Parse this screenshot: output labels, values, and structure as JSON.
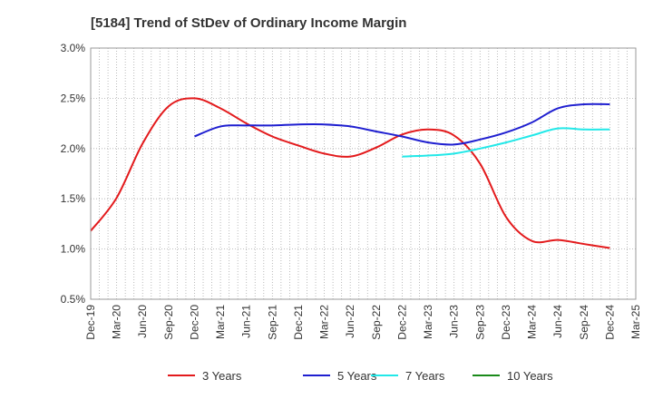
{
  "chart_data": {
    "type": "line",
    "title": "[5184]  Trend of StDev of Ordinary Income Margin",
    "xlabel": "",
    "ylabel": "",
    "x_tick_labels": [
      "Dec-19",
      "Mar-20",
      "Jun-20",
      "Sep-20",
      "Dec-20",
      "Mar-21",
      "Jun-21",
      "Sep-21",
      "Dec-21",
      "Mar-22",
      "Jun-22",
      "Sep-22",
      "Dec-22",
      "Mar-23",
      "Jun-23",
      "Sep-23",
      "Dec-23",
      "Mar-24",
      "Jun-24",
      "Sep-24",
      "Dec-24",
      "Mar-25"
    ],
    "y_tick_labels": [
      "0.5%",
      "1.0%",
      "1.5%",
      "2.0%",
      "2.5%",
      "3.0%"
    ],
    "ylim": [
      0.5,
      3.0
    ],
    "y_ticks": [
      0.5,
      1.0,
      1.5,
      2.0,
      2.5,
      3.0
    ],
    "grid": "vertical-monthly-dotted, horizontal-dotted",
    "legend_position": "bottom",
    "series": [
      {
        "name": "3 Years",
        "color": "#e31a1c",
        "x_index": [
          0,
          1,
          2,
          3,
          4,
          5,
          6,
          7,
          8,
          9,
          10,
          11,
          12,
          13,
          14,
          15,
          16,
          17,
          18,
          19,
          20
        ],
        "values": [
          1.18,
          1.51,
          2.05,
          2.42,
          2.5,
          2.4,
          2.25,
          2.12,
          2.03,
          1.95,
          1.92,
          2.01,
          2.14,
          2.19,
          2.13,
          1.85,
          1.32,
          1.08,
          1.09,
          1.05,
          1.01
        ]
      },
      {
        "name": "5 Years",
        "color": "#1f1fd0",
        "x_index": [
          4,
          5,
          6,
          7,
          8,
          9,
          10,
          11,
          12,
          13,
          14,
          15,
          16,
          17,
          18,
          19,
          20
        ],
        "values": [
          2.12,
          2.22,
          2.23,
          2.23,
          2.24,
          2.24,
          2.22,
          2.17,
          2.12,
          2.06,
          2.04,
          2.09,
          2.16,
          2.26,
          2.4,
          2.44,
          2.44
        ]
      },
      {
        "name": "7 Years",
        "color": "#22e8e8",
        "x_index": [
          12,
          13,
          14,
          15,
          16,
          17,
          18,
          19,
          20
        ],
        "values": [
          1.92,
          1.93,
          1.95,
          2.0,
          2.06,
          2.13,
          2.2,
          2.19,
          2.19
        ]
      },
      {
        "name": "10 Years",
        "color": "#1a8a1a",
        "x_index": [],
        "values": []
      }
    ]
  }
}
